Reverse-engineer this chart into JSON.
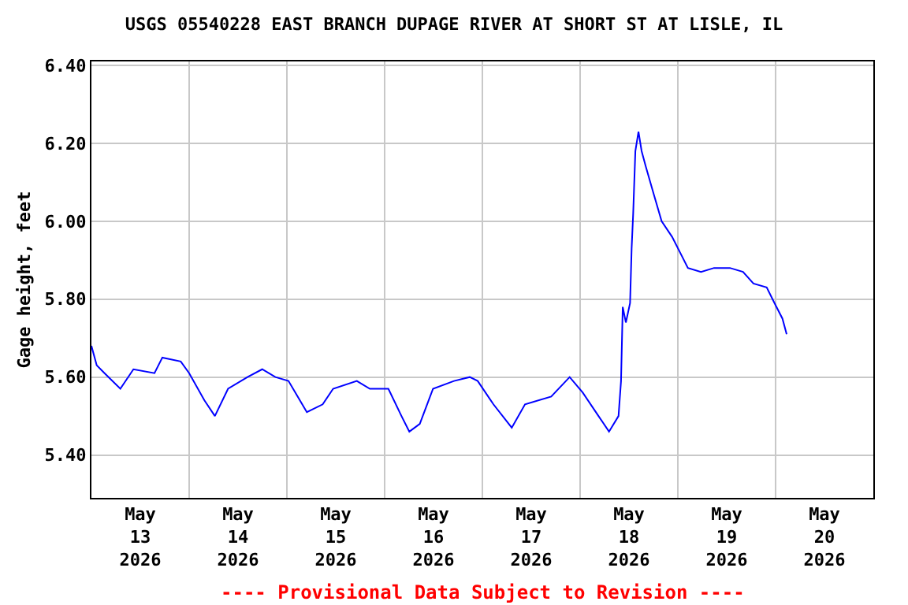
{
  "chart_data": {
    "type": "line",
    "title": "USGS 05540228 EAST BRANCH DUPAGE RIVER AT SHORT ST AT LISLE, IL",
    "ylabel": "Gage height, feet",
    "annotations": [
      "---- Provisional Data Subject to Revision ----"
    ],
    "x": [
      "2026-05-13T00:00",
      "2026-05-13T01:18",
      "2026-05-13T03:13",
      "2026-05-13T07:06",
      "2026-05-13T10:19",
      "2026-05-13T15:29",
      "2026-05-13T17:25",
      "2026-05-13T21:56",
      "2026-05-14T00:00",
      "2026-05-14T03:45",
      "2026-05-14T06:19",
      "2026-05-14T09:33",
      "2026-05-14T14:20",
      "2026-05-14T17:56",
      "2026-05-14T21:10",
      "2026-05-15T00:23",
      "2026-05-15T04:54",
      "2026-05-15T08:47",
      "2026-05-15T11:21",
      "2026-05-15T17:10",
      "2026-05-15T20:22",
      "2026-05-16T00:55",
      "2026-05-16T04:08",
      "2026-05-16T06:04",
      "2026-05-16T08:38",
      "2026-05-16T11:53",
      "2026-05-16T17:02",
      "2026-05-16T20:54",
      "2026-05-16T22:51",
      "2026-05-17T02:43",
      "2026-05-17T07:13",
      "2026-05-17T10:28",
      "2026-05-17T16:54",
      "2026-05-17T21:26",
      "2026-05-18T00:39",
      "2026-05-18T04:31",
      "2026-05-18T07:06",
      "2026-05-18T09:26",
      "2026-05-18T10:03",
      "2026-05-18T10:28",
      "2026-05-18T11:14",
      "2026-05-18T12:16",
      "2026-05-18T12:39",
      "2026-05-18T13:02",
      "2026-05-18T13:34",
      "2026-05-18T14:20",
      "2026-05-18T15:06",
      "2026-05-18T16:08",
      "2026-05-18T18:04",
      "2026-05-18T20:01",
      "2026-05-18T22:35",
      "2026-05-19T00:32",
      "2026-05-19T02:28",
      "2026-05-19T05:41",
      "2026-05-19T08:54",
      "2026-05-19T12:47",
      "2026-05-19T16:00",
      "2026-05-19T18:34",
      "2026-05-19T21:49",
      "2026-05-19T23:44",
      "2026-05-20T01:41",
      "2026-05-20T02:43"
    ],
    "series": [
      {
        "color": "#0000ff",
        "values": [
          5.68,
          5.63,
          5.61,
          5.57,
          5.62,
          5.61,
          5.65,
          5.64,
          5.61,
          5.54,
          5.5,
          5.57,
          5.6,
          5.62,
          5.6,
          5.59,
          5.51,
          5.53,
          5.57,
          5.59,
          5.57,
          5.57,
          5.5,
          5.46,
          5.48,
          5.57,
          5.59,
          5.6,
          5.59,
          5.53,
          5.47,
          5.53,
          5.55,
          5.6,
          5.56,
          5.5,
          5.46,
          5.5,
          5.59,
          5.78,
          5.74,
          5.79,
          5.93,
          6.02,
          6.18,
          6.23,
          6.18,
          6.14,
          6.07,
          6.0,
          5.96,
          5.92,
          5.88,
          5.87,
          5.88,
          5.88,
          5.87,
          5.84,
          5.83,
          5.79,
          5.75,
          5.71
        ]
      }
    ],
    "xlim": [
      "2026-05-13T00:00",
      "2026-05-21T00:00"
    ],
    "xticks": [
      {
        "value": "2026-05-13T12:00",
        "label": "May\n13\n2026"
      },
      {
        "value": "2026-05-14T12:00",
        "label": "May\n14\n2026"
      },
      {
        "value": "2026-05-15T12:00",
        "label": "May\n15\n2026"
      },
      {
        "value": "2026-05-16T12:00",
        "label": "May\n16\n2026"
      },
      {
        "value": "2026-05-17T12:00",
        "label": "May\n17\n2026"
      },
      {
        "value": "2026-05-18T12:00",
        "label": "May\n18\n2026"
      },
      {
        "value": "2026-05-19T12:00",
        "label": "May\n19\n2026"
      },
      {
        "value": "2026-05-20T12:00",
        "label": "May\n20\n2026"
      },
      {
        "value": "2026-05-14T00:00",
        "label": null
      },
      {
        "value": "2026-05-15T00:00",
        "label": null
      },
      {
        "value": "2026-05-16T00:00",
        "label": null
      },
      {
        "value": "2026-05-17T00:00",
        "label": null
      },
      {
        "value": "2026-05-18T00:00",
        "label": null
      },
      {
        "value": "2026-05-19T00:00",
        "label": null
      },
      {
        "value": "2026-05-20T00:00",
        "label": null
      }
    ],
    "ylim": [
      5.29,
      6.41
    ],
    "yticks": [
      {
        "value": 5.4,
        "label": "5.40"
      },
      {
        "value": 5.6,
        "label": "5.60"
      },
      {
        "value": 5.8,
        "label": "5.80"
      },
      {
        "value": 6.0,
        "label": "6.00"
      },
      {
        "value": 6.2,
        "label": "6.20"
      },
      {
        "value": 6.4,
        "label": "6.40"
      }
    ],
    "grid": true,
    "legend": false
  }
}
